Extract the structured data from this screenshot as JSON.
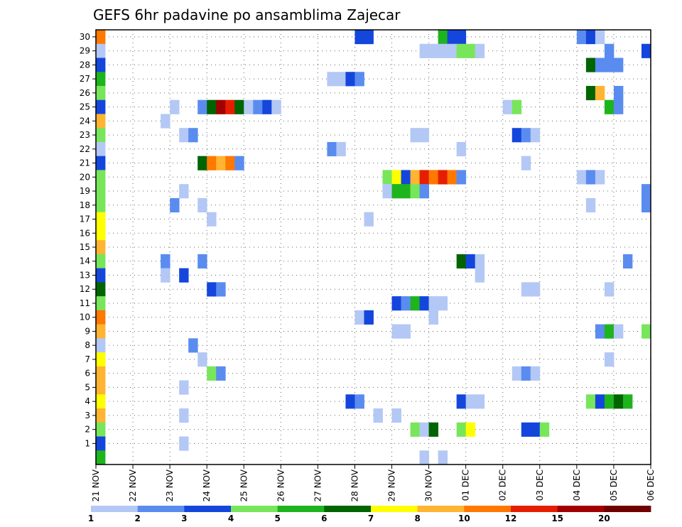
{
  "chart_data": {
    "type": "heatmap",
    "title": "GEFS 6hr padavine po ansamblima Zajecar",
    "x_tick_labels": [
      "21 NOV",
      "22 NOV",
      "23 NOV",
      "24 NOV",
      "25 NOV",
      "26 NOV",
      "27 NOV",
      "28 NOV",
      "29 NOV",
      "30 NOV",
      "01 DEC",
      "02 DEC",
      "03 DEC",
      "04 DEC",
      "05 DEC",
      "06 DEC"
    ],
    "y_tick_labels": [
      "1",
      "2",
      "3",
      "4",
      "5",
      "6",
      "7",
      "8",
      "9",
      "10",
      "11",
      "12",
      "13",
      "14",
      "15",
      "16",
      "17",
      "18",
      "19",
      "20",
      "21",
      "22",
      "23",
      "24",
      "25",
      "26",
      "27",
      "28",
      "29",
      "30"
    ],
    "x_unit": "6-hour steps from 21 NOV 00z",
    "xlim_steps": [
      0,
      60
    ],
    "ylim_members": [
      0,
      30
    ],
    "grid": true,
    "legend": {
      "placement": "bottom",
      "tick_labels": [
        "1",
        "2",
        "3",
        "4",
        "5",
        "6",
        "7",
        "8",
        "10",
        "12",
        "15",
        "20"
      ],
      "colors": [
        "#b4c8f5",
        "#5a8cf0",
        "#1446dc",
        "#78e65a",
        "#1eb41e",
        "#006400",
        "#ffff00",
        "#ffb432",
        "#ff7800",
        "#e61e00",
        "#a00000",
        "#6e0000"
      ]
    },
    "cells": [
      {
        "m": 30,
        "s": 0,
        "c": 9
      },
      {
        "m": 30,
        "s": 28,
        "c": 3
      },
      {
        "m": 30,
        "s": 29,
        "c": 3
      },
      {
        "m": 30,
        "s": 37,
        "c": 5
      },
      {
        "m": 30,
        "s": 38,
        "c": 3
      },
      {
        "m": 30,
        "s": 39,
        "c": 3
      },
      {
        "m": 30,
        "s": 52,
        "c": 2
      },
      {
        "m": 30,
        "s": 53,
        "c": 3
      },
      {
        "m": 30,
        "s": 54,
        "c": 1
      },
      {
        "m": 29,
        "s": 0,
        "c": 1
      },
      {
        "m": 29,
        "s": 35,
        "c": 1
      },
      {
        "m": 29,
        "s": 36,
        "c": 1
      },
      {
        "m": 29,
        "s": 37,
        "c": 1
      },
      {
        "m": 29,
        "s": 38,
        "c": 1
      },
      {
        "m": 29,
        "s": 39,
        "c": 4
      },
      {
        "m": 29,
        "s": 40,
        "c": 4
      },
      {
        "m": 29,
        "s": 41,
        "c": 1
      },
      {
        "m": 29,
        "s": 55,
        "c": 2
      },
      {
        "m": 29,
        "s": 59,
        "c": 3
      },
      {
        "m": 28,
        "s": 0,
        "c": 3
      },
      {
        "m": 28,
        "s": 53,
        "c": 6
      },
      {
        "m": 28,
        "s": 54,
        "c": 2
      },
      {
        "m": 28,
        "s": 55,
        "c": 2
      },
      {
        "m": 28,
        "s": 56,
        "c": 2
      },
      {
        "m": 27,
        "s": 0,
        "c": 5
      },
      {
        "m": 27,
        "s": 25,
        "c": 1
      },
      {
        "m": 27,
        "s": 26,
        "c": 1
      },
      {
        "m": 27,
        "s": 27,
        "c": 3
      },
      {
        "m": 27,
        "s": 28,
        "c": 2
      },
      {
        "m": 26,
        "s": 0,
        "c": 4
      },
      {
        "m": 26,
        "s": 53,
        "c": 6
      },
      {
        "m": 26,
        "s": 54,
        "c": 8
      },
      {
        "m": 26,
        "s": 56,
        "c": 2
      },
      {
        "m": 25,
        "s": 0,
        "c": 3
      },
      {
        "m": 25,
        "s": 8,
        "c": 1
      },
      {
        "m": 25,
        "s": 11,
        "c": 2
      },
      {
        "m": 25,
        "s": 12,
        "c": 6
      },
      {
        "m": 25,
        "s": 13,
        "c": 11
      },
      {
        "m": 25,
        "s": 14,
        "c": 10
      },
      {
        "m": 25,
        "s": 15,
        "c": 6
      },
      {
        "m": 25,
        "s": 16,
        "c": 1
      },
      {
        "m": 25,
        "s": 17,
        "c": 2
      },
      {
        "m": 25,
        "s": 18,
        "c": 3
      },
      {
        "m": 25,
        "s": 19,
        "c": 1
      },
      {
        "m": 25,
        "s": 44,
        "c": 1
      },
      {
        "m": 25,
        "s": 45,
        "c": 4
      },
      {
        "m": 25,
        "s": 55,
        "c": 5
      },
      {
        "m": 25,
        "s": 56,
        "c": 2
      },
      {
        "m": 24,
        "s": 0,
        "c": 8
      },
      {
        "m": 24,
        "s": 7,
        "c": 1
      },
      {
        "m": 23,
        "s": 0,
        "c": 4
      },
      {
        "m": 23,
        "s": 9,
        "c": 1
      },
      {
        "m": 23,
        "s": 10,
        "c": 2
      },
      {
        "m": 23,
        "s": 34,
        "c": 1
      },
      {
        "m": 23,
        "s": 35,
        "c": 1
      },
      {
        "m": 23,
        "s": 45,
        "c": 3
      },
      {
        "m": 23,
        "s": 46,
        "c": 2
      },
      {
        "m": 23,
        "s": 47,
        "c": 1
      },
      {
        "m": 22,
        "s": 0,
        "c": 1
      },
      {
        "m": 22,
        "s": 25,
        "c": 2
      },
      {
        "m": 22,
        "s": 26,
        "c": 1
      },
      {
        "m": 22,
        "s": 39,
        "c": 1
      },
      {
        "m": 21,
        "s": 0,
        "c": 3
      },
      {
        "m": 21,
        "s": 11,
        "c": 6
      },
      {
        "m": 21,
        "s": 12,
        "c": 9
      },
      {
        "m": 21,
        "s": 13,
        "c": 8
      },
      {
        "m": 21,
        "s": 14,
        "c": 9
      },
      {
        "m": 21,
        "s": 15,
        "c": 2
      },
      {
        "m": 21,
        "s": 46,
        "c": 1
      },
      {
        "m": 20,
        "s": 0,
        "c": 4
      },
      {
        "m": 20,
        "s": 31,
        "c": 4
      },
      {
        "m": 20,
        "s": 32,
        "c": 7
      },
      {
        "m": 20,
        "s": 33,
        "c": 3
      },
      {
        "m": 20,
        "s": 34,
        "c": 8
      },
      {
        "m": 20,
        "s": 35,
        "c": 10
      },
      {
        "m": 20,
        "s": 36,
        "c": 9
      },
      {
        "m": 20,
        "s": 37,
        "c": 10
      },
      {
        "m": 20,
        "s": 38,
        "c": 9
      },
      {
        "m": 20,
        "s": 39,
        "c": 2
      },
      {
        "m": 20,
        "s": 52,
        "c": 1
      },
      {
        "m": 20,
        "s": 53,
        "c": 2
      },
      {
        "m": 20,
        "s": 54,
        "c": 1
      },
      {
        "m": 19,
        "s": 0,
        "c": 4
      },
      {
        "m": 19,
        "s": 9,
        "c": 1
      },
      {
        "m": 19,
        "s": 31,
        "c": 1
      },
      {
        "m": 19,
        "s": 32,
        "c": 5
      },
      {
        "m": 19,
        "s": 33,
        "c": 5
      },
      {
        "m": 19,
        "s": 34,
        "c": 4
      },
      {
        "m": 19,
        "s": 35,
        "c": 2
      },
      {
        "m": 19,
        "s": 59,
        "c": 2
      },
      {
        "m": 18,
        "s": 0,
        "c": 4
      },
      {
        "m": 18,
        "s": 8,
        "c": 2
      },
      {
        "m": 18,
        "s": 11,
        "c": 1
      },
      {
        "m": 18,
        "s": 53,
        "c": 1
      },
      {
        "m": 18,
        "s": 59,
        "c": 2
      },
      {
        "m": 17,
        "s": 0,
        "c": 7
      },
      {
        "m": 17,
        "s": 12,
        "c": 1
      },
      {
        "m": 17,
        "s": 29,
        "c": 1
      },
      {
        "m": 16,
        "s": 0,
        "c": 7
      },
      {
        "m": 15,
        "s": 0,
        "c": 8
      },
      {
        "m": 14,
        "s": 0,
        "c": 4
      },
      {
        "m": 14,
        "s": 7,
        "c": 2
      },
      {
        "m": 14,
        "s": 11,
        "c": 2
      },
      {
        "m": 14,
        "s": 39,
        "c": 6
      },
      {
        "m": 14,
        "s": 40,
        "c": 3
      },
      {
        "m": 14,
        "s": 41,
        "c": 1
      },
      {
        "m": 14,
        "s": 57,
        "c": 2
      },
      {
        "m": 13,
        "s": 0,
        "c": 3
      },
      {
        "m": 13,
        "s": 7,
        "c": 1
      },
      {
        "m": 13,
        "s": 9,
        "c": 3
      },
      {
        "m": 13,
        "s": 41,
        "c": 1
      },
      {
        "m": 12,
        "s": 0,
        "c": 6
      },
      {
        "m": 12,
        "s": 12,
        "c": 3
      },
      {
        "m": 12,
        "s": 13,
        "c": 2
      },
      {
        "m": 12,
        "s": 46,
        "c": 1
      },
      {
        "m": 12,
        "s": 47,
        "c": 1
      },
      {
        "m": 12,
        "s": 55,
        "c": 1
      },
      {
        "m": 11,
        "s": 0,
        "c": 4
      },
      {
        "m": 11,
        "s": 32,
        "c": 3
      },
      {
        "m": 11,
        "s": 33,
        "c": 2
      },
      {
        "m": 11,
        "s": 34,
        "c": 5
      },
      {
        "m": 11,
        "s": 35,
        "c": 3
      },
      {
        "m": 11,
        "s": 36,
        "c": 1
      },
      {
        "m": 11,
        "s": 37,
        "c": 1
      },
      {
        "m": 10,
        "s": 0,
        "c": 9
      },
      {
        "m": 10,
        "s": 28,
        "c": 1
      },
      {
        "m": 10,
        "s": 29,
        "c": 3
      },
      {
        "m": 10,
        "s": 36,
        "c": 1
      },
      {
        "m": 9,
        "s": 0,
        "c": 8
      },
      {
        "m": 9,
        "s": 32,
        "c": 1
      },
      {
        "m": 9,
        "s": 33,
        "c": 1
      },
      {
        "m": 9,
        "s": 54,
        "c": 2
      },
      {
        "m": 9,
        "s": 55,
        "c": 5
      },
      {
        "m": 9,
        "s": 56,
        "c": 1
      },
      {
        "m": 9,
        "s": 59,
        "c": 4
      },
      {
        "m": 8,
        "s": 0,
        "c": 1
      },
      {
        "m": 8,
        "s": 10,
        "c": 2
      },
      {
        "m": 7,
        "s": 0,
        "c": 7
      },
      {
        "m": 7,
        "s": 11,
        "c": 1
      },
      {
        "m": 7,
        "s": 55,
        "c": 1
      },
      {
        "m": 6,
        "s": 0,
        "c": 8
      },
      {
        "m": 6,
        "s": 12,
        "c": 4
      },
      {
        "m": 6,
        "s": 13,
        "c": 2
      },
      {
        "m": 6,
        "s": 45,
        "c": 1
      },
      {
        "m": 6,
        "s": 46,
        "c": 2
      },
      {
        "m": 6,
        "s": 47,
        "c": 1
      },
      {
        "m": 5,
        "s": 0,
        "c": 8
      },
      {
        "m": 5,
        "s": 9,
        "c": 1
      },
      {
        "m": 4,
        "s": 0,
        "c": 7
      },
      {
        "m": 4,
        "s": 27,
        "c": 3
      },
      {
        "m": 4,
        "s": 28,
        "c": 2
      },
      {
        "m": 4,
        "s": 39,
        "c": 3
      },
      {
        "m": 4,
        "s": 40,
        "c": 1
      },
      {
        "m": 4,
        "s": 41,
        "c": 1
      },
      {
        "m": 4,
        "s": 53,
        "c": 4
      },
      {
        "m": 4,
        "s": 54,
        "c": 3
      },
      {
        "m": 4,
        "s": 55,
        "c": 5
      },
      {
        "m": 4,
        "s": 56,
        "c": 6
      },
      {
        "m": 4,
        "s": 57,
        "c": 5
      },
      {
        "m": 3,
        "s": 0,
        "c": 8
      },
      {
        "m": 3,
        "s": 9,
        "c": 1
      },
      {
        "m": 3,
        "s": 30,
        "c": 1
      },
      {
        "m": 3,
        "s": 32,
        "c": 1
      },
      {
        "m": 2,
        "s": 0,
        "c": 4
      },
      {
        "m": 2,
        "s": 34,
        "c": 4
      },
      {
        "m": 2,
        "s": 35,
        "c": 1
      },
      {
        "m": 2,
        "s": 36,
        "c": 6
      },
      {
        "m": 2,
        "s": 39,
        "c": 4
      },
      {
        "m": 2,
        "s": 40,
        "c": 7
      },
      {
        "m": 2,
        "s": 46,
        "c": 3
      },
      {
        "m": 2,
        "s": 47,
        "c": 3
      },
      {
        "m": 2,
        "s": 48,
        "c": 4
      },
      {
        "m": 1,
        "s": 0,
        "c": 3
      },
      {
        "m": 1,
        "s": 9,
        "c": 1
      },
      {
        "m": 0,
        "s": 0,
        "c": 5
      },
      {
        "m": 0,
        "s": 35,
        "c": 1
      },
      {
        "m": 0,
        "s": 37,
        "c": 1
      }
    ]
  }
}
